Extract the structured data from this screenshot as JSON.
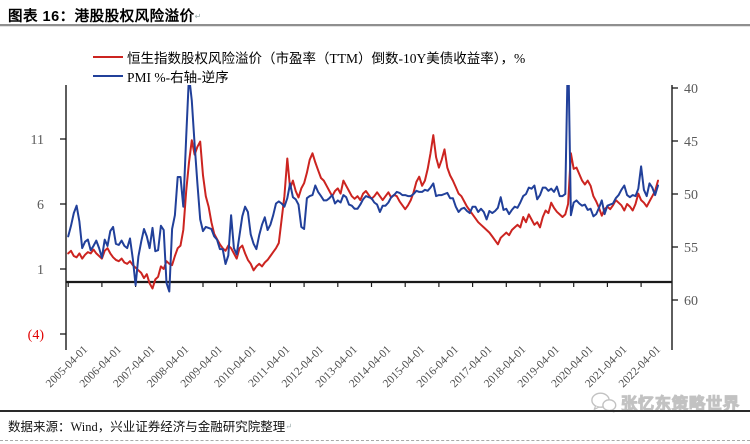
{
  "header": {
    "title": "图表 16：港股股权风险溢价"
  },
  "marks": {
    "pilcrow": "↵"
  },
  "footer": {
    "source": "数据来源：Wind，兴业证券经济与金融研究院整理"
  },
  "watermark": {
    "text": "张忆东策略世界",
    "icon": "wechat-icon",
    "color": "#c2c2c2"
  },
  "colors": {
    "erp_red": "#cc2420",
    "pmi_blue": "#21409a",
    "axis": "#1a1a1a",
    "tick_text": "#5a5a5a",
    "x_tick_text": "#4d4d4d",
    "negative_label_red": "#e00000"
  },
  "chart_data": {
    "type": "line",
    "title": "港股股权风险溢价",
    "x_range": {
      "start": "2005-04",
      "end": "2022-10",
      "freq": "monthly"
    },
    "x_tick_labels": [
      "2005-04-01",
      "2006-04-01",
      "2007-04-01",
      "2008-04-01",
      "2009-04-01",
      "2010-04-01",
      "2011-04-01",
      "2012-04-01",
      "2013-04-01",
      "2014-04-01",
      "2015-04-01",
      "2016-04-01",
      "2017-04-01",
      "2018-04-01",
      "2019-04-01",
      "2020-04-01",
      "2021-04-01",
      "2022-04-01"
    ],
    "left_axis": {
      "tick_values": [
        11,
        6,
        1,
        -4
      ],
      "tick_labels": [
        "11",
        "6",
        "1",
        "(4)"
      ],
      "crosses_at": 0,
      "range": [
        -5.2,
        15.2
      ]
    },
    "right_axis": {
      "tick_values": [
        40,
        45,
        50,
        55,
        60
      ],
      "tick_labels": [
        "40",
        "45",
        "50",
        "55",
        "60"
      ],
      "reversed": true,
      "range": [
        39.7,
        64.8
      ]
    },
    "grid": false,
    "legend_position": "top-left",
    "series": [
      {
        "name": "恒生指数股权风险溢价（市盈率（TTM）倒数-10Y美债收益率），%",
        "axis": "left",
        "color": "#cc2420",
        "values": [
          2.2,
          2.4,
          2.0,
          1.9,
          2.2,
          1.8,
          2.1,
          2.3,
          2.2,
          2.5,
          2.2,
          2.0,
          1.8,
          2.4,
          2.6,
          2.2,
          1.9,
          1.7,
          1.6,
          1.8,
          1.5,
          1.4,
          1.6,
          1.3,
          1.1,
          0.9,
          0.7,
          0.3,
          0.6,
          -0.1,
          -0.5,
          0.2,
          0.4,
          1.2,
          1.0,
          1.6,
          1.4,
          1.3,
          2.0,
          2.6,
          2.8,
          4.0,
          7.0,
          9.2,
          10.9,
          9.8,
          10.4,
          10.8,
          8.2,
          6.6,
          5.8,
          4.6,
          3.7,
          3.3,
          2.9,
          2.6,
          2.4,
          2.8,
          2.6,
          2.2,
          1.8,
          2.6,
          2.8,
          2.2,
          1.7,
          1.4,
          0.9,
          1.2,
          1.4,
          1.2,
          1.5,
          1.7,
          2.0,
          2.3,
          2.6,
          3.0,
          4.8,
          6.6,
          9.5,
          7.2,
          7.8,
          7.0,
          6.5,
          7.2,
          7.6,
          8.4,
          9.4,
          9.9,
          9.2,
          8.6,
          8.0,
          7.8,
          7.4,
          7.0,
          6.6,
          7.0,
          7.2,
          6.8,
          7.8,
          7.4,
          7.0,
          6.6,
          6.4,
          6.6,
          6.3,
          6.8,
          7.0,
          6.7,
          6.4,
          6.6,
          6.9,
          6.6,
          6.3,
          6.6,
          6.9,
          6.5,
          6.7,
          6.6,
          6.2,
          5.9,
          5.6,
          5.9,
          6.3,
          6.9,
          7.7,
          8.1,
          7.4,
          7.8,
          8.7,
          9.9,
          11.3,
          9.6,
          8.8,
          9.4,
          10.2,
          8.8,
          8.2,
          7.8,
          7.3,
          6.8,
          6.6,
          6.2,
          5.8,
          5.5,
          5.2,
          4.9,
          4.6,
          4.4,
          4.2,
          4.0,
          3.8,
          3.5,
          3.2,
          2.9,
          3.4,
          3.6,
          3.8,
          3.6,
          4.0,
          4.2,
          4.4,
          4.2,
          5.0,
          4.6,
          5.2,
          4.8,
          4.4,
          4.6,
          4.2,
          5.0,
          5.5,
          5.3,
          6.1,
          5.7,
          5.4,
          5.2,
          5.0,
          5.2,
          6.0,
          9.9,
          8.7,
          8.8,
          8.3,
          7.8,
          7.5,
          7.8,
          7.4,
          6.6,
          6.2,
          5.7,
          5.1,
          5.6,
          5.8,
          5.6,
          5.9,
          6.3,
          6.1,
          5.9,
          5.5,
          6.0,
          5.8,
          5.5,
          6.0,
          6.8,
          6.3,
          6.1,
          5.8,
          6.2,
          6.6,
          7.0,
          7.8
        ]
      },
      {
        "name": "PMI %-右轴-逆序",
        "axis": "right",
        "color": "#21409a",
        "values": [
          54.0,
          53.0,
          51.8,
          51.1,
          52.6,
          55.1,
          54.5,
          54.3,
          55.3,
          54.9,
          54.4,
          55.1,
          56.0,
          54.3,
          54.9,
          53.5,
          53.1,
          54.7,
          54.8,
          54.4,
          54.9,
          55.1,
          54.2,
          56.1,
          58.6,
          55.9,
          54.5,
          53.3,
          54.0,
          55.1,
          53.2,
          55.4,
          55.3,
          53.0,
          53.4,
          58.4,
          59.2,
          53.3,
          52.0,
          48.4,
          48.4,
          51.2,
          44.6,
          38.8,
          41.2,
          45.3,
          49.0,
          52.4,
          53.5,
          53.1,
          53.2,
          53.3,
          54.0,
          54.3,
          55.2,
          55.2,
          56.6,
          55.8,
          52.0,
          55.1,
          55.7,
          53.9,
          52.1,
          51.2,
          51.7,
          53.8,
          54.7,
          55.2,
          53.9,
          52.9,
          52.2,
          53.4,
          52.9,
          52.0,
          50.9,
          50.7,
          50.9,
          51.2,
          50.4,
          49.0,
          50.3,
          50.5,
          51.0,
          53.1,
          53.3,
          50.4,
          50.2,
          50.1,
          49.2,
          49.8,
          50.2,
          50.6,
          50.6,
          50.4,
          50.1,
          50.9,
          50.6,
          50.8,
          50.1,
          50.3,
          51.0,
          51.1,
          51.4,
          51.4,
          51.0,
          50.5,
          50.2,
          50.3,
          50.4,
          50.8,
          51.0,
          51.7,
          51.1,
          51.1,
          50.8,
          50.3,
          50.1,
          49.8,
          49.9,
          50.1,
          50.1,
          50.2,
          50.2,
          50.0,
          49.7,
          49.8,
          49.8,
          49.6,
          49.7,
          49.4,
          49.0,
          50.2,
          50.1,
          50.1,
          50.0,
          49.9,
          50.4,
          50.4,
          51.2,
          51.7,
          51.4,
          51.3,
          51.6,
          51.8,
          51.2,
          51.2,
          51.7,
          51.4,
          51.7,
          52.4,
          51.6,
          51.8,
          51.6,
          51.3,
          50.3,
          51.5,
          51.4,
          51.9,
          51.5,
          51.2,
          51.3,
          50.8,
          50.2,
          50.0,
          49.4,
          49.5,
          49.2,
          50.5,
          50.1,
          49.4,
          49.4,
          49.7,
          49.5,
          49.8,
          49.3,
          50.2,
          50.2,
          50.0,
          35.7,
          52.0,
          50.8,
          50.6,
          50.9,
          51.1,
          51.0,
          51.5,
          51.4,
          52.1,
          51.9,
          51.3,
          50.6,
          51.9,
          51.1,
          51.0,
          50.9,
          50.4,
          50.1,
          49.6,
          49.2,
          50.1,
          50.3,
          50.1,
          50.2,
          49.5,
          47.4,
          49.6,
          50.2,
          49.0,
          49.4,
          50.1,
          49.2
        ]
      }
    ]
  }
}
